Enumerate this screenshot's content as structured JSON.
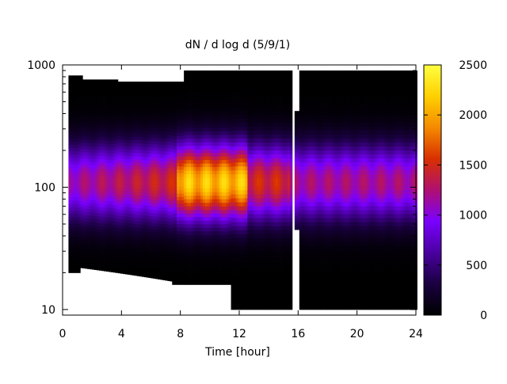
{
  "chart_data": {
    "type": "heatmap",
    "title": "dN / d log d (5/9/1)",
    "xlabel": "Time [hour]",
    "ylabel": "",
    "x_range": [
      0,
      24
    ],
    "y_range": [
      9,
      1000
    ],
    "y_scale": "log",
    "x_ticks": [
      "0",
      "4",
      "8",
      "12",
      "16",
      "20",
      "24"
    ],
    "y_ticks": [
      "10",
      "100",
      "1000"
    ],
    "colorbar": {
      "range": [
        0,
        2500
      ],
      "ticks": [
        "0",
        "500",
        "1000",
        "1500",
        "2000",
        "2500"
      ],
      "palette": [
        "#000000",
        "#1a0040",
        "#4a00a0",
        "#7a00ff",
        "#b01070",
        "#d83000",
        "#f58a00",
        "#ffd000",
        "#ffff40"
      ]
    },
    "grid": false,
    "gaps_hours": [
      [
        15.55,
        15.75
      ],
      [
        15.75,
        16.1
      ]
    ],
    "peak_diameter": 110,
    "peaks": [
      {
        "time_range": [
          7.7,
          12.5
        ],
        "value": 2300
      },
      {
        "time_range": [
          12.5,
          15.5
        ],
        "value": 1600
      },
      {
        "time_range": [
          16.1,
          24
        ],
        "value": 1300
      }
    ]
  }
}
